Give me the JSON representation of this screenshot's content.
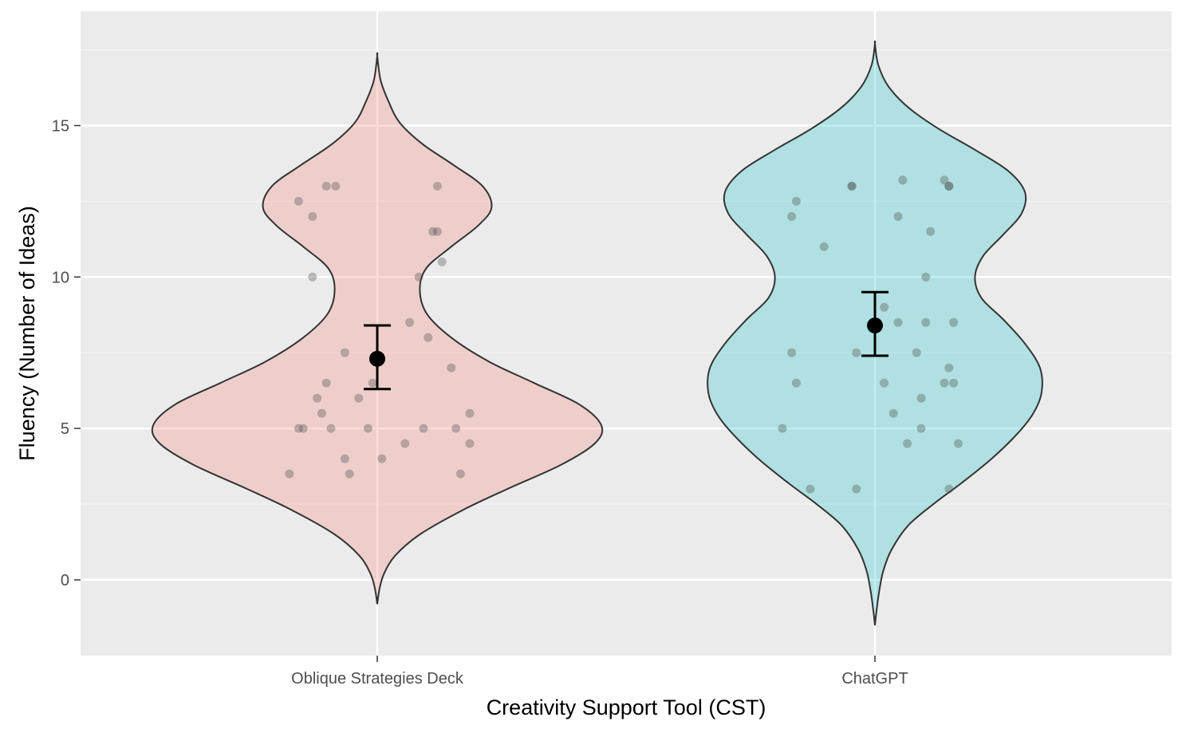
{
  "chart_data": {
    "type": "violin",
    "xlabel": "Creativity Support Tool (CST)",
    "ylabel": "Fluency (Number of Ideas)",
    "ylim": [
      -2.4,
      19.2
    ],
    "yticks": [
      0,
      5,
      10,
      15
    ],
    "grid": true,
    "categories": [
      "Oblique Strategies Deck",
      "ChatGPT"
    ],
    "groups": [
      {
        "category": "Oblique Strategies Deck",
        "fill_color": "#f8766d",
        "mean": 7.3,
        "ci_low": 6.3,
        "ci_high": 8.4,
        "density_profile": [
          [
            -0.8,
            0.0
          ],
          [
            -0.3,
            0.01
          ],
          [
            0.2,
            0.03
          ],
          [
            0.8,
            0.08
          ],
          [
            1.5,
            0.19
          ],
          [
            2.3,
            0.38
          ],
          [
            3.0,
            0.58
          ],
          [
            3.8,
            0.82
          ],
          [
            4.5,
            0.97
          ],
          [
            5.1,
            1.0
          ],
          [
            5.8,
            0.9
          ],
          [
            6.5,
            0.7
          ],
          [
            7.2,
            0.5
          ],
          [
            8.0,
            0.33
          ],
          [
            8.8,
            0.22
          ],
          [
            9.6,
            0.19
          ],
          [
            10.3,
            0.22
          ],
          [
            11.0,
            0.33
          ],
          [
            11.7,
            0.45
          ],
          [
            12.3,
            0.51
          ],
          [
            13.0,
            0.47
          ],
          [
            13.7,
            0.34
          ],
          [
            14.4,
            0.2
          ],
          [
            15.1,
            0.1
          ],
          [
            15.8,
            0.05
          ],
          [
            16.5,
            0.015
          ],
          [
            17.3,
            0.0
          ]
        ],
        "points": [
          [
            -0.19,
            3.5
          ],
          [
            -0.17,
            5.0
          ],
          [
            -0.16,
            5.0
          ],
          [
            -0.17,
            12.5
          ],
          [
            -0.14,
            12.0
          ],
          [
            -0.14,
            10.0
          ],
          [
            -0.13,
            6.0
          ],
          [
            -0.12,
            5.5
          ],
          [
            -0.11,
            6.5
          ],
          [
            -0.1,
            5.0
          ],
          [
            -0.11,
            13.0
          ],
          [
            -0.09,
            13.0
          ],
          [
            -0.07,
            7.5
          ],
          [
            -0.07,
            4.0
          ],
          [
            -0.06,
            3.5
          ],
          [
            -0.04,
            6.0
          ],
          [
            -0.02,
            5.0
          ],
          [
            -0.01,
            6.5
          ],
          [
            0.01,
            4.0
          ],
          [
            0.06,
            4.5
          ],
          [
            0.07,
            8.5
          ],
          [
            0.09,
            10.0
          ],
          [
            0.1,
            5.0
          ],
          [
            0.11,
            8.0
          ],
          [
            0.12,
            11.5
          ],
          [
            0.13,
            11.5
          ],
          [
            0.13,
            13.0
          ],
          [
            0.14,
            10.5
          ],
          [
            0.16,
            7.0
          ],
          [
            0.17,
            5.0
          ],
          [
            0.18,
            3.5
          ],
          [
            0.2,
            5.5
          ],
          [
            0.2,
            4.5
          ]
        ]
      },
      {
        "category": "ChatGPT",
        "fill_color": "#00bfc4",
        "mean": 8.4,
        "ci_low": 7.4,
        "ci_high": 9.5,
        "density_profile": [
          [
            -1.5,
            0.0
          ],
          [
            -1.0,
            0.01
          ],
          [
            -0.4,
            0.025
          ],
          [
            0.3,
            0.05
          ],
          [
            1.0,
            0.1
          ],
          [
            1.8,
            0.2
          ],
          [
            2.5,
            0.35
          ],
          [
            3.2,
            0.52
          ],
          [
            4.0,
            0.7
          ],
          [
            4.8,
            0.85
          ],
          [
            5.5,
            0.95
          ],
          [
            6.2,
            1.0
          ],
          [
            7.0,
            0.99
          ],
          [
            7.8,
            0.9
          ],
          [
            8.6,
            0.77
          ],
          [
            9.3,
            0.64
          ],
          [
            10.0,
            0.6
          ],
          [
            10.7,
            0.65
          ],
          [
            11.4,
            0.77
          ],
          [
            12.1,
            0.88
          ],
          [
            12.8,
            0.9
          ],
          [
            13.5,
            0.8
          ],
          [
            14.2,
            0.6
          ],
          [
            14.9,
            0.38
          ],
          [
            15.6,
            0.2
          ],
          [
            16.3,
            0.08
          ],
          [
            17.0,
            0.02
          ],
          [
            17.7,
            0.0
          ]
        ],
        "points": [
          [
            -0.2,
            5.0
          ],
          [
            -0.18,
            12.0
          ],
          [
            -0.18,
            7.5
          ],
          [
            -0.17,
            12.5
          ],
          [
            -0.17,
            6.5
          ],
          [
            -0.14,
            3.0
          ],
          [
            -0.11,
            11.0
          ],
          [
            -0.05,
            13.0
          ],
          [
            -0.05,
            13.0
          ],
          [
            -0.04,
            3.0
          ],
          [
            -0.04,
            7.5
          ],
          [
            0.02,
            9.0
          ],
          [
            0.02,
            6.5
          ],
          [
            0.04,
            5.5
          ],
          [
            0.05,
            8.5
          ],
          [
            0.05,
            12.0
          ],
          [
            0.06,
            13.2
          ],
          [
            0.07,
            4.5
          ],
          [
            0.09,
            7.5
          ],
          [
            0.1,
            6.0
          ],
          [
            0.1,
            5.0
          ],
          [
            0.11,
            8.5
          ],
          [
            0.11,
            10.0
          ],
          [
            0.12,
            11.5
          ],
          [
            0.15,
            6.5
          ],
          [
            0.15,
            13.2
          ],
          [
            0.16,
            3.0
          ],
          [
            0.16,
            7.0
          ],
          [
            0.16,
            13.0
          ],
          [
            0.16,
            13.0
          ],
          [
            0.17,
            8.5
          ],
          [
            0.17,
            6.5
          ],
          [
            0.18,
            4.5
          ]
        ]
      }
    ]
  }
}
